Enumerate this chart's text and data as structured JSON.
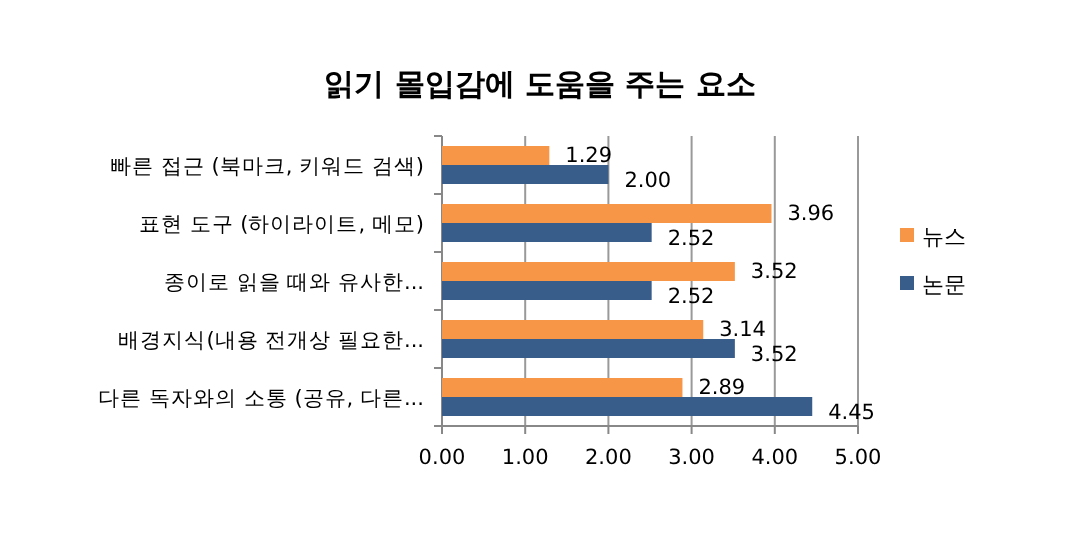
{
  "chart_data": {
    "type": "bar",
    "orientation": "horizontal",
    "title": "읽기 몰입감에 도움을 주는 요소",
    "categories": [
      "빠른 접근 (북마크, 키워드 검색)",
      "표현 도구 (하이라이트, 메모)",
      "종이로 읽을 때와 유사한...",
      "배경지식(내용 전개상 필요한...",
      "다른 독자와의 소통 (공유, 다른..."
    ],
    "series": [
      {
        "name": "뉴스",
        "color": "#f79646",
        "values": [
          1.29,
          3.96,
          3.52,
          3.14,
          2.89
        ],
        "value_labels": [
          "1.29",
          "3.96",
          "3.52",
          "3.14",
          "2.89"
        ]
      },
      {
        "name": "논문",
        "color": "#385d8a",
        "values": [
          2.0,
          2.52,
          2.52,
          3.52,
          4.45
        ],
        "value_labels": [
          "2.00",
          "2.52",
          "2.52",
          "3.52",
          "4.45"
        ]
      }
    ],
    "xlim": [
      0,
      5
    ],
    "xticks": [
      {
        "value": 0,
        "label": "0.00"
      },
      {
        "value": 1,
        "label": "1.00"
      },
      {
        "value": 2,
        "label": "2.00"
      },
      {
        "value": 3,
        "label": "3.00"
      },
      {
        "value": 4,
        "label": "4.00"
      },
      {
        "value": 5,
        "label": "5.00"
      }
    ],
    "grid": "x",
    "legend": "right"
  }
}
